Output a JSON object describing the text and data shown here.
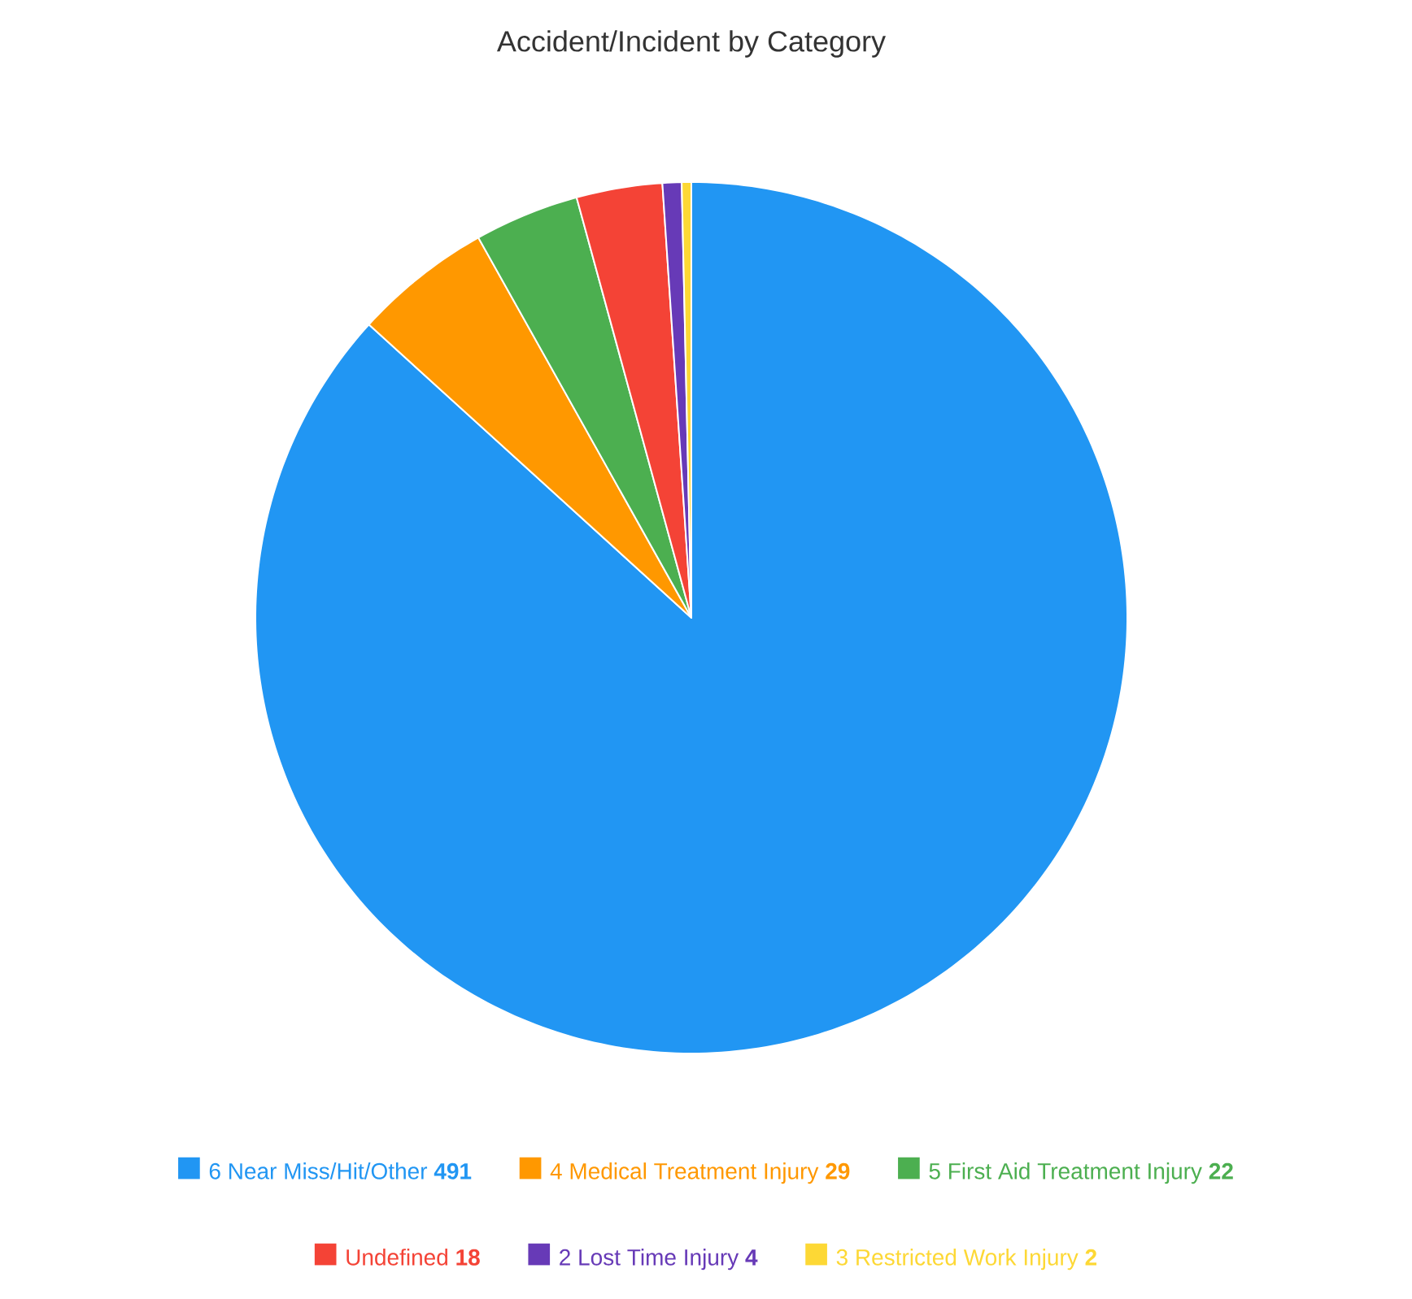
{
  "chart_data": {
    "type": "pie",
    "title": "Accident/Incident by Category",
    "categories": [
      "6 Near Miss/Hit/Other",
      "4 Medical Treatment Injury",
      "5 First Aid Treatment Injury",
      "Undefined",
      "2 Lost Time Injury",
      "3 Restricted Work Injury"
    ],
    "values": [
      491,
      29,
      22,
      18,
      4,
      2
    ],
    "colors": [
      "#2196f3",
      "#ff9800",
      "#4caf50",
      "#f44336",
      "#673ab7",
      "#fdd835"
    ],
    "data_labels": true,
    "legend": "bottom"
  }
}
